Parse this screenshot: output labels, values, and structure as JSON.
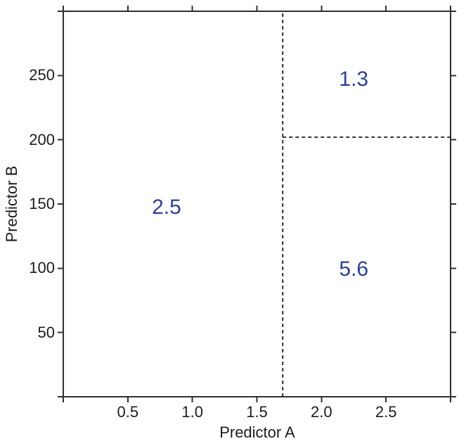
{
  "chart_data": {
    "type": "line",
    "subtype": "regression-tree-partition",
    "title": "",
    "xlabel": "Predictor A",
    "ylabel": "Predictor B",
    "xlim": [
      0,
      3
    ],
    "ylim": [
      0,
      300
    ],
    "grid": false,
    "legend": "none",
    "tick_sides": [
      "bottom",
      "left",
      "top",
      "right"
    ],
    "x_ticks": [
      0,
      0.5,
      1,
      1.5,
      2,
      2.5,
      3
    ],
    "y_ticks": [
      0,
      50,
      100,
      150,
      200,
      250,
      300
    ],
    "x_tick_labels": [
      {
        "value": 0.5,
        "label": "0.5"
      },
      {
        "value": 1.0,
        "label": "1.0"
      },
      {
        "value": 1.5,
        "label": "1.5"
      },
      {
        "value": 2.0,
        "label": "2.0"
      },
      {
        "value": 2.5,
        "label": "2.5"
      }
    ],
    "y_tick_labels": [
      {
        "value": 50,
        "label": "50"
      },
      {
        "value": 100,
        "label": "100"
      },
      {
        "value": 150,
        "label": "150"
      },
      {
        "value": 200,
        "label": "200"
      },
      {
        "value": 250,
        "label": "250"
      }
    ],
    "series": [
      {
        "name": "split-line-predictor-a",
        "style": "dashed",
        "x": [
          1.7,
          1.7
        ],
        "y": [
          0,
          300
        ]
      },
      {
        "name": "split-line-predictor-b",
        "style": "dashed",
        "x": [
          1.7,
          3.0
        ],
        "y": [
          202,
          202
        ]
      }
    ],
    "annotations": [
      {
        "text": "2.5",
        "x": 0.8,
        "y": 147
      },
      {
        "text": "1.3",
        "x": 2.25,
        "y": 247
      },
      {
        "text": "5.6",
        "x": 2.25,
        "y": 99
      }
    ],
    "colors": {
      "axis": "#303030",
      "split_line": "#1a1a1a",
      "annotation": "#2d3f98",
      "tick_label": "#1c1c1c"
    }
  }
}
